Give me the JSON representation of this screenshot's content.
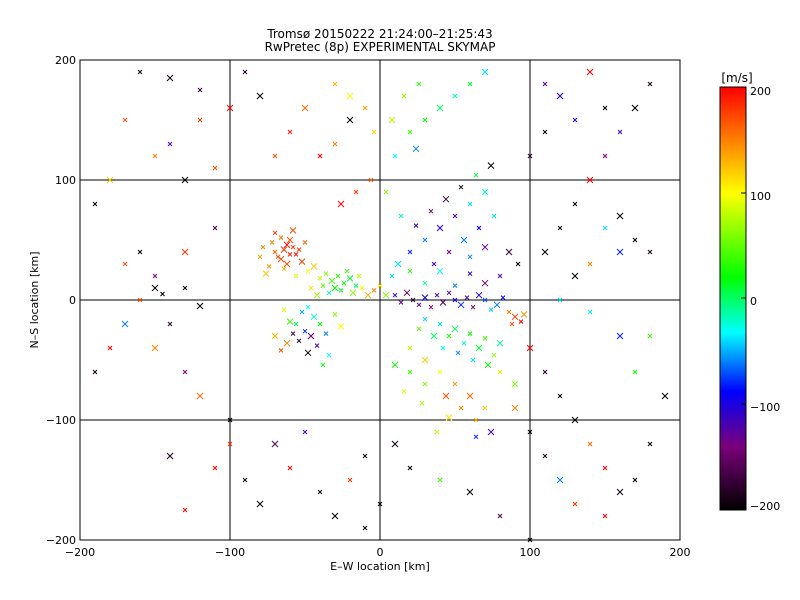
{
  "chart_data": [
    {
      "type": "scatter",
      "title": "Tromsø 20150222 21:24:00–21:25:43",
      "subtitle": "RwPretec (8p) EXPERIMENTAL SKYMAP",
      "xlabel": "E–W location [km]",
      "ylabel": "N–S location [km]",
      "xlim": [
        -200,
        200
      ],
      "ylim": [
        -200,
        200
      ],
      "xticks": [
        -200,
        -100,
        0,
        100,
        200
      ],
      "yticks": [
        -200,
        -100,
        0,
        100,
        200
      ],
      "xtick_labels": [
        "−200",
        "−100",
        "0",
        "100",
        "200"
      ],
      "ytick_labels": [
        "−200",
        "−100",
        "0",
        "100",
        "200"
      ],
      "grid": true,
      "marker": "x",
      "color_by": "velocity",
      "points": [
        [
          -64,
          42,
          180
        ],
        [
          -60,
          38,
          190
        ],
        [
          -68,
          36,
          170
        ],
        [
          -62,
          46,
          200
        ],
        [
          -58,
          44,
          185
        ],
        [
          -70,
          40,
          160
        ],
        [
          -66,
          34,
          175
        ],
        [
          -56,
          38,
          195
        ],
        [
          -72,
          48,
          150
        ],
        [
          -62,
          30,
          170
        ],
        [
          -54,
          42,
          180
        ],
        [
          -74,
          28,
          140
        ],
        [
          -60,
          50,
          165
        ],
        [
          -66,
          52,
          155
        ],
        [
          -78,
          44,
          150
        ],
        [
          -52,
          32,
          175
        ],
        [
          -64,
          26,
          130
        ],
        [
          -70,
          56,
          180
        ],
        [
          -58,
          58,
          170
        ],
        [
          -80,
          36,
          140
        ],
        [
          -50,
          48,
          160
        ],
        [
          -76,
          22,
          120
        ],
        [
          -48,
          24,
          100
        ],
        [
          -56,
          20,
          90
        ],
        [
          -44,
          28,
          120
        ],
        [
          -40,
          18,
          80
        ],
        [
          -36,
          22,
          60
        ],
        [
          -32,
          16,
          40
        ],
        [
          -28,
          20,
          30
        ],
        [
          -24,
          14,
          20
        ],
        [
          -20,
          18,
          10
        ],
        [
          -16,
          12,
          0
        ],
        [
          -38,
          12,
          50
        ],
        [
          -30,
          10,
          20
        ],
        [
          -26,
          8,
          10
        ],
        [
          -34,
          6,
          -10
        ],
        [
          -42,
          4,
          70
        ],
        [
          -46,
          10,
          110
        ],
        [
          -22,
          24,
          40
        ],
        [
          -18,
          6,
          60
        ],
        [
          -14,
          20,
          80
        ],
        [
          -12,
          10,
          100
        ],
        [
          -8,
          4,
          130
        ],
        [
          -4,
          8,
          150
        ],
        [
          0,
          12,
          110
        ],
        [
          4,
          4,
          60
        ],
        [
          -48,
          -6,
          -30
        ],
        [
          -52,
          -10,
          -50
        ],
        [
          -44,
          -14,
          -20
        ],
        [
          -56,
          -20,
          0
        ],
        [
          -50,
          -26,
          -80
        ],
        [
          -46,
          -30,
          -150
        ],
        [
          -54,
          -34,
          -190
        ],
        [
          -58,
          -28,
          -170
        ],
        [
          -62,
          -36,
          150
        ],
        [
          -66,
          -42,
          170
        ],
        [
          -42,
          -38,
          -120
        ],
        [
          -48,
          -44,
          -200
        ],
        [
          -40,
          -20,
          20
        ],
        [
          -36,
          -28,
          -60
        ],
        [
          -60,
          -18,
          40
        ],
        [
          -64,
          -8,
          90
        ],
        [
          -30,
          -12,
          60
        ],
        [
          -26,
          -22,
          100
        ],
        [
          -34,
          -46,
          -30
        ],
        [
          -38,
          -54,
          20
        ],
        [
          -70,
          -30,
          130
        ],
        [
          10,
          4,
          -100
        ],
        [
          14,
          -2,
          -130
        ],
        [
          18,
          6,
          -150
        ],
        [
          22,
          0,
          -180
        ],
        [
          26,
          -4,
          -120
        ],
        [
          30,
          2,
          -90
        ],
        [
          34,
          -6,
          -140
        ],
        [
          38,
          4,
          -110
        ],
        [
          42,
          -2,
          -160
        ],
        [
          46,
          6,
          -130
        ],
        [
          50,
          0,
          -100
        ],
        [
          54,
          -4,
          -80
        ],
        [
          58,
          2,
          -120
        ],
        [
          62,
          -6,
          -150
        ],
        [
          66,
          4,
          -100
        ],
        [
          70,
          0,
          -70
        ],
        [
          74,
          -8,
          -40
        ],
        [
          78,
          -4,
          -60
        ],
        [
          82,
          2,
          -90
        ],
        [
          86,
          -10,
          150
        ],
        [
          90,
          -14,
          180
        ],
        [
          94,
          -18,
          200
        ],
        [
          88,
          -20,
          170
        ],
        [
          96,
          -12,
          140
        ],
        [
          30,
          -16,
          -40
        ],
        [
          40,
          -20,
          -20
        ],
        [
          50,
          -24,
          0
        ],
        [
          60,
          -28,
          20
        ],
        [
          70,
          -32,
          40
        ],
        [
          80,
          -36,
          -10
        ],
        [
          46,
          -30,
          30
        ],
        [
          56,
          -36,
          -20
        ],
        [
          66,
          -40,
          10
        ],
        [
          76,
          -46,
          60
        ],
        [
          62,
          -50,
          -40
        ],
        [
          72,
          -54,
          20
        ],
        [
          52,
          -44,
          -60
        ],
        [
          42,
          -40,
          -30
        ],
        [
          36,
          -30,
          0
        ],
        [
          26,
          -24,
          50
        ],
        [
          20,
          -40,
          80
        ],
        [
          30,
          -50,
          120
        ],
        [
          40,
          -60,
          100
        ],
        [
          50,
          -70,
          140
        ],
        [
          60,
          -80,
          160
        ],
        [
          70,
          -90,
          120
        ],
        [
          80,
          -60,
          90
        ],
        [
          90,
          -70,
          60
        ],
        [
          20,
          -60,
          40
        ],
        [
          30,
          -70,
          60
        ],
        [
          44,
          -80,
          170
        ],
        [
          54,
          -90,
          150
        ],
        [
          64,
          -100,
          130
        ],
        [
          74,
          -110,
          -120
        ],
        [
          64,
          -114,
          -80
        ],
        [
          38,
          -110,
          80
        ],
        [
          46,
          -98,
          110
        ],
        [
          28,
          -86,
          70
        ],
        [
          16,
          -76,
          90
        ],
        [
          10,
          -54,
          20
        ],
        [
          20,
          40,
          -80
        ],
        [
          30,
          50,
          -60
        ],
        [
          40,
          60,
          -100
        ],
        [
          50,
          70,
          -130
        ],
        [
          60,
          80,
          -40
        ],
        [
          70,
          90,
          -20
        ],
        [
          24,
          62,
          -110
        ],
        [
          34,
          74,
          -150
        ],
        [
          44,
          84,
          -170
        ],
        [
          54,
          94,
          -190
        ],
        [
          64,
          104,
          10
        ],
        [
          74,
          112,
          -200
        ],
        [
          36,
          30,
          -120
        ],
        [
          46,
          40,
          -140
        ],
        [
          56,
          50,
          -60
        ],
        [
          66,
          60,
          -90
        ],
        [
          76,
          70,
          -20
        ],
        [
          86,
          40,
          -170
        ],
        [
          92,
          30,
          -200
        ],
        [
          80,
          20,
          -130
        ],
        [
          70,
          14,
          -150
        ],
        [
          60,
          22,
          -110
        ],
        [
          50,
          12,
          -60
        ],
        [
          40,
          24,
          -30
        ],
        [
          30,
          14,
          -10
        ],
        [
          20,
          24,
          30
        ],
        [
          12,
          30,
          -40
        ],
        [
          8,
          20,
          -20
        ],
        [
          60,
          36,
          -60
        ],
        [
          70,
          44,
          -130
        ],
        [
          20,
          140,
          40
        ],
        [
          30,
          150,
          20
        ],
        [
          40,
          160,
          0
        ],
        [
          50,
          170,
          -20
        ],
        [
          60,
          180,
          10
        ],
        [
          70,
          190,
          -40
        ],
        [
          16,
          170,
          60
        ],
        [
          26,
          180,
          30
        ],
        [
          8,
          150,
          80
        ],
        [
          -4,
          140,
          120
        ],
        [
          -10,
          160,
          140
        ],
        [
          -20,
          170,
          100
        ],
        [
          -30,
          180,
          130
        ],
        [
          10,
          120,
          -30
        ],
        [
          24,
          126,
          -60
        ],
        [
          -6,
          100,
          160
        ],
        [
          -16,
          90,
          180
        ],
        [
          -26,
          80,
          200
        ],
        [
          4,
          90,
          60
        ],
        [
          14,
          70,
          -20
        ],
        [
          -100,
          160,
          200
        ],
        [
          -120,
          150,
          180
        ],
        [
          -140,
          130,
          -120
        ],
        [
          -80,
          170,
          -200
        ],
        [
          -90,
          190,
          -180
        ],
        [
          -60,
          140,
          190
        ],
        [
          -50,
          160,
          160
        ],
        [
          -40,
          120,
          200
        ],
        [
          -30,
          130,
          150
        ],
        [
          -20,
          150,
          -200
        ],
        [
          -70,
          120,
          170
        ],
        [
          -110,
          110,
          170
        ],
        [
          -130,
          100,
          -200
        ],
        [
          -150,
          120,
          150
        ],
        [
          -170,
          150,
          170
        ],
        [
          -180,
          100,
          120
        ],
        [
          -190,
          80,
          -200
        ],
        [
          -160,
          190,
          -190
        ],
        [
          -140,
          185,
          -190
        ],
        [
          -120,
          175,
          -180
        ],
        [
          -110,
          60,
          -160
        ],
        [
          -130,
          40,
          180
        ],
        [
          -150,
          20,
          -140
        ],
        [
          -160,
          0,
          170
        ],
        [
          -170,
          -20,
          -60
        ],
        [
          -180,
          -40,
          200
        ],
        [
          -190,
          -60,
          -190
        ],
        [
          -150,
          -40,
          150
        ],
        [
          -140,
          -20,
          -180
        ],
        [
          -130,
          -60,
          -140
        ],
        [
          -120,
          -80,
          160
        ],
        [
          -100,
          -120,
          180
        ],
        [
          -90,
          -150,
          -190
        ],
        [
          -80,
          -170,
          -200
        ],
        [
          -60,
          -140,
          200
        ],
        [
          -40,
          -160,
          -190
        ],
        [
          -30,
          -180,
          -200
        ],
        [
          -20,
          -150,
          180
        ],
        [
          -10,
          -130,
          -200
        ],
        [
          -140,
          -130,
          -190
        ],
        [
          -130,
          -175,
          200
        ],
        [
          -110,
          -140,
          200
        ],
        [
          -70,
          -120,
          -160
        ],
        [
          -50,
          -110,
          -120
        ],
        [
          -100,
          -100,
          -200
        ],
        [
          -150,
          10,
          -190
        ],
        [
          -130,
          10,
          -200
        ],
        [
          -145,
          5,
          -200
        ],
        [
          -120,
          -5,
          -200
        ],
        [
          -170,
          30,
          170
        ],
        [
          -160,
          40,
          -200
        ],
        [
          100,
          -40,
          200
        ],
        [
          110,
          -60,
          -180
        ],
        [
          120,
          -80,
          -200
        ],
        [
          130,
          -100,
          -200
        ],
        [
          140,
          -120,
          160
        ],
        [
          150,
          -140,
          200
        ],
        [
          160,
          -160,
          -190
        ],
        [
          170,
          -150,
          -200
        ],
        [
          180,
          -120,
          -200
        ],
        [
          190,
          -80,
          -200
        ],
        [
          150,
          -180,
          200
        ],
        [
          130,
          -170,
          180
        ],
        [
          120,
          -150,
          -60
        ],
        [
          110,
          -130,
          -190
        ],
        [
          100,
          -110,
          -200
        ],
        [
          90,
          -90,
          150
        ],
        [
          20,
          -140,
          -200
        ],
        [
          40,
          -150,
          40
        ],
        [
          60,
          -160,
          -200
        ],
        [
          80,
          -180,
          -160
        ],
        [
          100,
          -200,
          -200
        ],
        [
          10,
          -120,
          -190
        ],
        [
          0,
          -170,
          -200
        ],
        [
          -10,
          -190,
          -200
        ],
        [
          110,
          40,
          -200
        ],
        [
          120,
          60,
          -190
        ],
        [
          130,
          80,
          -200
        ],
        [
          140,
          100,
          200
        ],
        [
          150,
          120,
          -140
        ],
        [
          160,
          140,
          -120
        ],
        [
          170,
          160,
          -200
        ],
        [
          180,
          180,
          -190
        ],
        [
          130,
          150,
          -110
        ],
        [
          120,
          170,
          -100
        ],
        [
          110,
          180,
          -130
        ],
        [
          150,
          160,
          -200
        ],
        [
          140,
          190,
          200
        ],
        [
          100,
          120,
          -180
        ],
        [
          110,
          140,
          -200
        ],
        [
          160,
          70,
          -200
        ],
        [
          170,
          50,
          -200
        ],
        [
          180,
          40,
          -190
        ],
        [
          160,
          40,
          -80
        ],
        [
          150,
          60,
          -40
        ],
        [
          140,
          30,
          150
        ],
        [
          130,
          20,
          -200
        ],
        [
          120,
          0,
          -40
        ],
        [
          140,
          -10,
          -30
        ],
        [
          160,
          -30,
          -80
        ],
        [
          180,
          -30,
          40
        ],
        [
          170,
          -60,
          20
        ]
      ]
    },
    {
      "type": "colorbar",
      "title": "[m/s]",
      "range": [
        -200,
        200
      ],
      "ticks": [
        200,
        100,
        0,
        -100,
        -200
      ],
      "tick_labels": [
        "200",
        "100",
        "0",
        "−100",
        "−200"
      ],
      "colormap": [
        "#000000",
        "#7a007a",
        "#0000ff",
        "#00ffff",
        "#00ff00",
        "#ffff00",
        "#ff0000"
      ]
    }
  ]
}
